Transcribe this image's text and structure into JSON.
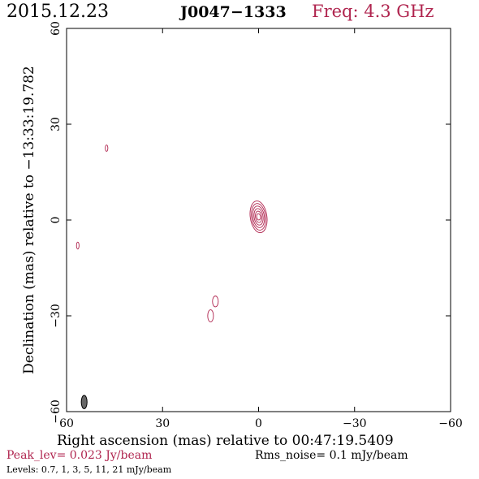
{
  "header": {
    "date": "2015.12.23",
    "source": "J0047−1333",
    "freq": "Freq: 4.3 GHz"
  },
  "footer": {
    "peak": "Peak_lev=  0.023 Jy/beam",
    "rms": "Rms_noise=   0.1 mJy/beam",
    "levels": "Levels: 0.7,    1,    3,    5,   11,   21 mJy/beam"
  },
  "colors": {
    "contour": "#b0254f",
    "beam": "#666666"
  },
  "chart_data": {
    "type": "contour",
    "xlabel": "Right ascension (mas) relative to 00:47:19.5409",
    "ylabel": "Declination (mas) relative to −13:33:19.782",
    "xlim": [
      60,
      -60
    ],
    "ylim": [
      -60,
      60
    ],
    "xticks": [
      {
        "value": 60,
        "label": "60"
      },
      {
        "value": 30,
        "label": "30"
      },
      {
        "value": 0,
        "label": "0"
      },
      {
        "value": -30,
        "label": "−30"
      },
      {
        "value": -60,
        "label": "−60"
      }
    ],
    "yticks": [
      {
        "value": -60,
        "label": "−60"
      },
      {
        "value": -30,
        "label": "−30"
      },
      {
        "value": 0,
        "label": "0"
      },
      {
        "value": 30,
        "label": "30"
      },
      {
        "value": 60,
        "label": "60"
      }
    ],
    "components": [
      {
        "name": "core",
        "x": 0,
        "y": 1,
        "radii": [
          [
            2.6,
            5.0
          ],
          [
            2.2,
            4.2
          ],
          [
            1.8,
            3.4
          ],
          [
            1.4,
            2.6
          ],
          [
            1.0,
            1.8
          ],
          [
            0.6,
            1.0
          ]
        ],
        "angle": -8
      },
      {
        "name": "blob-1",
        "x": 47.5,
        "y": 22.5,
        "radii": [
          [
            0.4,
            1.0
          ]
        ],
        "angle": 0
      },
      {
        "name": "blob-2",
        "x": 56.5,
        "y": -8,
        "radii": [
          [
            0.4,
            1.1
          ]
        ],
        "angle": 0
      },
      {
        "name": "blob-3",
        "x": 13.5,
        "y": -25.5,
        "radii": [
          [
            0.9,
            1.7
          ]
        ],
        "angle": 0
      },
      {
        "name": "blob-4",
        "x": 15,
        "y": -30,
        "radii": [
          [
            0.9,
            1.9
          ]
        ],
        "angle": 0
      }
    ],
    "beam": {
      "x": 54.5,
      "y": -57,
      "a": 0.9,
      "b": 2.1,
      "angle": 0
    }
  }
}
